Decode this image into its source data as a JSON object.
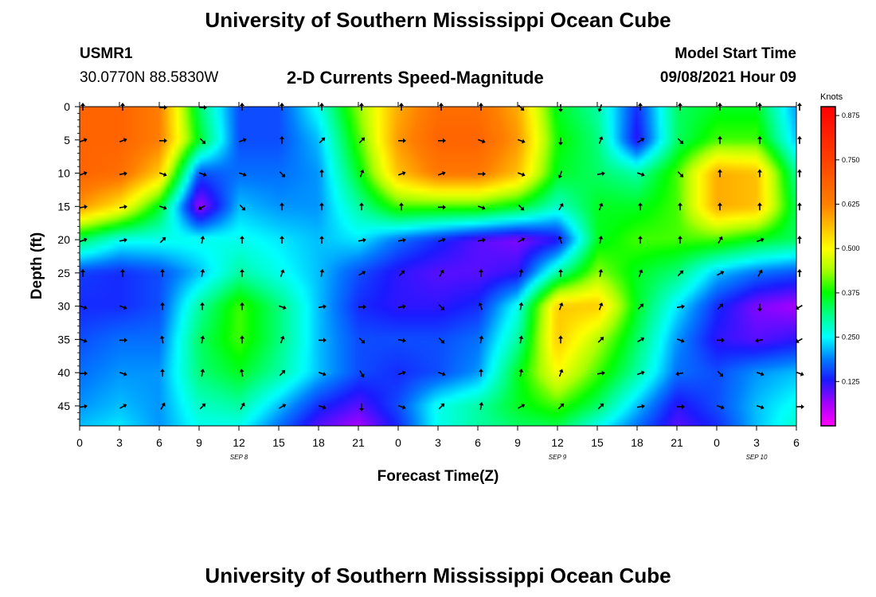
{
  "header": {
    "top_title": "University of Southern Mississippi Ocean Cube",
    "bottom_title": "University of Southern Mississippi Ocean Cube",
    "station_id": "USMR1",
    "station_coords": "30.0770N  88.5830W",
    "plot_title": "2-D Currents Speed-Magnitude",
    "model_start_label": "Model Start Time",
    "model_start_value": "09/08/2021 Hour 09"
  },
  "chart_data": {
    "type": "heatmap",
    "title": "2-D Currents Speed-Magnitude",
    "xlabel": "Forecast Time(Z)",
    "ylabel": "Depth (ft)",
    "x_tick_labels": [
      "0",
      "3",
      "6",
      "9",
      "12",
      "15",
      "18",
      "21",
      "0",
      "3",
      "6",
      "9",
      "12",
      "15",
      "18",
      "21",
      "0",
      "3",
      "6"
    ],
    "x_date_labels": [
      {
        "label": "SEP 8",
        "tick_index": 4
      },
      {
        "label": "SEP 9",
        "tick_index": 12
      },
      {
        "label": "SEP 10",
        "tick_index": 17
      }
    ],
    "y_ticks": [
      0,
      5,
      10,
      15,
      20,
      25,
      30,
      35,
      40,
      45
    ],
    "ylim": [
      0,
      48
    ],
    "xlim_hours": [
      0,
      54
    ],
    "colorbar": {
      "unit": "Knots",
      "tick_labels": [
        "0.875",
        "0.750",
        "0.625",
        "0.500",
        "0.375",
        "0.250",
        "0.125"
      ],
      "tick_values": [
        0.875,
        0.75,
        0.625,
        0.5,
        0.375,
        0.25,
        0.125
      ],
      "range": [
        0,
        0.9
      ],
      "stops": [
        {
          "v": 0.0,
          "color": "#ff00ff"
        },
        {
          "v": 0.06,
          "color": "#aa00ff"
        },
        {
          "v": 0.13,
          "color": "#1a1aff"
        },
        {
          "v": 0.19,
          "color": "#0080ff"
        },
        {
          "v": 0.25,
          "color": "#00ffff"
        },
        {
          "v": 0.31,
          "color": "#00ff90"
        },
        {
          "v": 0.375,
          "color": "#00ff00"
        },
        {
          "v": 0.44,
          "color": "#aaff00"
        },
        {
          "v": 0.5,
          "color": "#ffff00"
        },
        {
          "v": 0.56,
          "color": "#ffc000"
        },
        {
          "v": 0.625,
          "color": "#ff8000"
        },
        {
          "v": 0.75,
          "color": "#ff4000"
        },
        {
          "v": 0.9,
          "color": "#ff0000"
        }
      ]
    },
    "speed_hours": [
      0,
      3,
      6,
      9,
      12,
      15,
      18,
      21,
      24,
      27,
      30,
      33,
      36,
      39,
      42,
      45,
      48,
      51,
      54
    ],
    "speed_depths": [
      0,
      5,
      10,
      15,
      20,
      25,
      30,
      35,
      40,
      45,
      48
    ],
    "speed_values": [
      [
        0.68,
        0.68,
        0.63,
        0.33,
        0.16,
        0.16,
        0.26,
        0.43,
        0.58,
        0.66,
        0.66,
        0.58,
        0.36,
        0.3,
        0.14,
        0.33,
        0.36,
        0.36,
        0.2
      ],
      [
        0.68,
        0.68,
        0.63,
        0.36,
        0.16,
        0.16,
        0.22,
        0.4,
        0.6,
        0.68,
        0.68,
        0.6,
        0.38,
        0.32,
        0.12,
        0.33,
        0.4,
        0.4,
        0.22
      ],
      [
        0.68,
        0.66,
        0.55,
        0.16,
        0.18,
        0.18,
        0.2,
        0.36,
        0.56,
        0.64,
        0.64,
        0.56,
        0.36,
        0.33,
        0.3,
        0.4,
        0.58,
        0.56,
        0.3
      ],
      [
        0.6,
        0.52,
        0.36,
        0.06,
        0.22,
        0.2,
        0.2,
        0.3,
        0.4,
        0.4,
        0.4,
        0.36,
        0.28,
        0.36,
        0.36,
        0.4,
        0.58,
        0.56,
        0.33
      ],
      [
        0.33,
        0.26,
        0.26,
        0.26,
        0.26,
        0.24,
        0.22,
        0.24,
        0.18,
        0.14,
        0.1,
        0.08,
        0.12,
        0.36,
        0.4,
        0.4,
        0.4,
        0.36,
        0.33
      ],
      [
        0.15,
        0.14,
        0.16,
        0.22,
        0.3,
        0.26,
        0.22,
        0.16,
        0.12,
        0.1,
        0.1,
        0.12,
        0.3,
        0.43,
        0.36,
        0.32,
        0.22,
        0.18,
        0.16
      ],
      [
        0.14,
        0.14,
        0.16,
        0.3,
        0.4,
        0.32,
        0.22,
        0.14,
        0.12,
        0.12,
        0.14,
        0.26,
        0.55,
        0.55,
        0.36,
        0.24,
        0.14,
        0.08,
        0.06
      ],
      [
        0.16,
        0.18,
        0.18,
        0.33,
        0.4,
        0.32,
        0.22,
        0.16,
        0.16,
        0.16,
        0.18,
        0.3,
        0.55,
        0.45,
        0.33,
        0.2,
        0.12,
        0.1,
        0.12
      ],
      [
        0.18,
        0.2,
        0.2,
        0.32,
        0.36,
        0.3,
        0.22,
        0.16,
        0.14,
        0.16,
        0.2,
        0.36,
        0.5,
        0.4,
        0.3,
        0.18,
        0.16,
        0.2,
        0.22
      ],
      [
        0.2,
        0.22,
        0.2,
        0.28,
        0.3,
        0.22,
        0.14,
        0.1,
        0.16,
        0.26,
        0.3,
        0.36,
        0.4,
        0.33,
        0.22,
        0.12,
        0.16,
        0.22,
        0.26
      ],
      [
        0.22,
        0.24,
        0.2,
        0.26,
        0.26,
        0.18,
        0.1,
        0.06,
        0.14,
        0.26,
        0.3,
        0.33,
        0.34,
        0.26,
        0.18,
        0.1,
        0.14,
        0.22,
        0.28
      ]
    ],
    "vector_directions_deg": [
      [
        0,
        0,
        90,
        90,
        0,
        0,
        0,
        0,
        0,
        0,
        0,
        135,
        180,
        200,
        0,
        0,
        0,
        0,
        0
      ],
      [
        70,
        70,
        90,
        135,
        70,
        0,
        45,
        45,
        90,
        90,
        110,
        110,
        180,
        20,
        60,
        135,
        0,
        0,
        0
      ],
      [
        70,
        80,
        110,
        110,
        110,
        135,
        0,
        20,
        70,
        70,
        90,
        110,
        200,
        80,
        110,
        135,
        0,
        0,
        0
      ],
      [
        80,
        80,
        110,
        240,
        135,
        0,
        0,
        0,
        0,
        90,
        110,
        135,
        30,
        20,
        0,
        0,
        0,
        0,
        0
      ],
      [
        70,
        80,
        45,
        10,
        0,
        0,
        0,
        80,
        80,
        70,
        80,
        60,
        340,
        10,
        0,
        0,
        30,
        70,
        0
      ],
      [
        0,
        0,
        0,
        10,
        0,
        20,
        10,
        60,
        45,
        30,
        0,
        10,
        0,
        10,
        20,
        45,
        60,
        30,
        0
      ],
      [
        110,
        110,
        0,
        0,
        0,
        110,
        80,
        90,
        80,
        135,
        340,
        10,
        20,
        20,
        45,
        80,
        45,
        180,
        240
      ],
      [
        110,
        90,
        350,
        10,
        0,
        20,
        90,
        135,
        100,
        135,
        10,
        10,
        0,
        45,
        60,
        110,
        90,
        260,
        240
      ],
      [
        90,
        110,
        0,
        10,
        350,
        45,
        110,
        150,
        70,
        110,
        0,
        10,
        20,
        80,
        70,
        260,
        135,
        110,
        110
      ],
      [
        80,
        60,
        30,
        45,
        30,
        60,
        110,
        180,
        110,
        45,
        10,
        60,
        45,
        45,
        80,
        90,
        110,
        110,
        90
      ]
    ],
    "vector_depths": [
      0,
      5,
      10,
      15,
      20,
      25,
      30,
      35,
      40,
      45
    ]
  }
}
